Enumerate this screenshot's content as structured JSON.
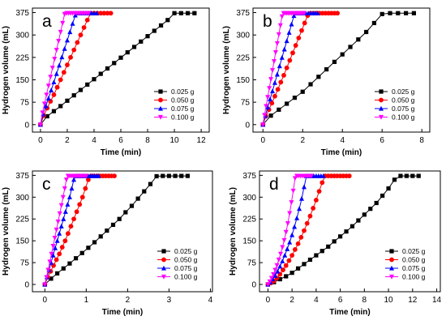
{
  "chart_data": [
    {
      "type": "line",
      "panel_label": "a",
      "xlabel": "Time (min)",
      "ylabel": "Hydrogen volume (mL)",
      "xlim": [
        -0.6,
        12.6
      ],
      "ylim": [
        -25,
        390
      ],
      "xticks": [
        0,
        2,
        4,
        6,
        8,
        10,
        12
      ],
      "yticks": [
        0,
        75,
        150,
        225,
        300,
        375
      ],
      "legend_position": "lower-right",
      "series": [
        {
          "name": "0.025 g",
          "color": "#000000",
          "marker": "square",
          "x": [
            0,
            0.5,
            1,
            1.5,
            2,
            2.5,
            3,
            3.5,
            4,
            4.5,
            5,
            5.5,
            6,
            6.5,
            7,
            7.5,
            8,
            8.5,
            9,
            9.5,
            10,
            10.5,
            11,
            11.5
          ],
          "y": [
            0,
            28,
            45,
            62,
            80,
            98,
            116,
            134,
            152,
            170,
            188,
            206,
            224,
            242,
            260,
            278,
            296,
            314,
            332,
            350,
            373,
            373,
            373,
            373
          ]
        },
        {
          "name": "0.050 g",
          "color": "#ff0000",
          "marker": "circle",
          "x": [
            0,
            0.25,
            0.5,
            0.75,
            1,
            1.25,
            1.5,
            1.75,
            2,
            2.25,
            2.5,
            2.75,
            3,
            3.25,
            3.5,
            3.75,
            4,
            4.25,
            4.5,
            4.75,
            5,
            5.25
          ],
          "y": [
            0,
            30,
            55,
            78,
            100,
            125,
            150,
            175,
            200,
            225,
            250,
            275,
            300,
            325,
            350,
            373,
            373,
            373,
            373,
            373,
            373,
            373
          ]
        },
        {
          "name": "0.075 g",
          "color": "#0000ff",
          "marker": "triangle-up",
          "x": [
            0,
            0.2,
            0.4,
            0.6,
            0.8,
            1,
            1.2,
            1.4,
            1.6,
            1.8,
            2,
            2.2,
            2.4,
            2.6,
            2.8,
            3,
            3.2,
            3.4,
            3.6,
            3.8,
            4,
            4.2
          ],
          "y": [
            0,
            35,
            62,
            88,
            115,
            142,
            170,
            198,
            226,
            254,
            282,
            310,
            338,
            366,
            373,
            373,
            373,
            373,
            373,
            373,
            373,
            373
          ]
        },
        {
          "name": "0.100 g",
          "color": "#ff00ff",
          "marker": "triangle-down",
          "x": [
            0,
            0.15,
            0.3,
            0.45,
            0.6,
            0.75,
            0.9,
            1.05,
            1.2,
            1.35,
            1.5,
            1.65,
            1.8,
            1.95,
            2.1,
            2.25,
            2.4,
            2.55,
            2.7,
            2.85,
            3,
            3.15,
            3.3,
            3.45,
            3.6
          ],
          "y": [
            0,
            40,
            70,
            100,
            130,
            160,
            190,
            220,
            250,
            280,
            310,
            340,
            370,
            373,
            373,
            373,
            373,
            373,
            373,
            373,
            373,
            373,
            373,
            373,
            373
          ]
        }
      ]
    },
    {
      "type": "line",
      "panel_label": "b",
      "xlabel": "Time (min)",
      "ylabel": "Hydrogen volume (mL)",
      "xlim": [
        -0.5,
        8.4
      ],
      "ylim": [
        -25,
        390
      ],
      "xticks": [
        0,
        2,
        4,
        6,
        8
      ],
      "yticks": [
        0,
        75,
        150,
        225,
        300,
        375
      ],
      "legend_position": "lower-right",
      "series": [
        {
          "name": "0.025 g",
          "color": "#000000",
          "marker": "square",
          "x": [
            0,
            0.4,
            0.8,
            1.2,
            1.6,
            2,
            2.4,
            2.8,
            3.2,
            3.6,
            4,
            4.4,
            4.8,
            5.2,
            5.6,
            6,
            6.4,
            6.8,
            7.2,
            7.6
          ],
          "y": [
            0,
            30,
            50,
            70,
            90,
            110,
            135,
            160,
            185,
            210,
            235,
            260,
            285,
            310,
            340,
            370,
            373,
            373,
            373,
            373
          ]
        },
        {
          "name": "0.050 g",
          "color": "#ff0000",
          "marker": "circle",
          "x": [
            0,
            0.15,
            0.3,
            0.45,
            0.6,
            0.75,
            0.9,
            1.05,
            1.2,
            1.35,
            1.5,
            1.65,
            1.8,
            1.95,
            2.1,
            2.25,
            2.4,
            2.55,
            2.7,
            2.85,
            3,
            3.15,
            3.3,
            3.45,
            3.6,
            3.75
          ],
          "y": [
            0,
            28,
            50,
            72,
            95,
            118,
            142,
            165,
            190,
            215,
            240,
            265,
            290,
            315,
            340,
            365,
            373,
            373,
            373,
            373,
            373,
            373,
            373,
            373,
            373,
            373
          ]
        },
        {
          "name": "0.075 g",
          "color": "#0000ff",
          "marker": "triangle-up",
          "x": [
            0,
            0.12,
            0.24,
            0.36,
            0.48,
            0.6,
            0.72,
            0.84,
            0.96,
            1.08,
            1.2,
            1.32,
            1.44,
            1.56,
            1.68,
            1.8,
            1.92,
            2.04,
            2.16,
            2.28,
            2.4,
            2.52,
            2.64,
            2.76
          ],
          "y": [
            0,
            30,
            58,
            85,
            112,
            140,
            168,
            196,
            224,
            252,
            280,
            308,
            336,
            364,
            373,
            373,
            373,
            373,
            373,
            373,
            373,
            373,
            373,
            373
          ]
        },
        {
          "name": "0.100 g",
          "color": "#ff00ff",
          "marker": "triangle-down",
          "x": [
            0,
            0.08,
            0.16,
            0.24,
            0.32,
            0.4,
            0.48,
            0.56,
            0.64,
            0.72,
            0.8,
            0.88,
            0.96,
            1.04,
            1.12,
            1.2,
            1.28,
            1.36,
            1.44,
            1.52,
            1.6,
            1.68,
            1.76,
            1.84,
            1.92,
            2.0,
            2.08
          ],
          "y": [
            0,
            32,
            62,
            92,
            122,
            152,
            182,
            212,
            242,
            272,
            302,
            332,
            362,
            373,
            373,
            373,
            373,
            373,
            373,
            373,
            373,
            373,
            373,
            373,
            373,
            373,
            373
          ]
        }
      ]
    },
    {
      "type": "line",
      "panel_label": "c",
      "xlabel": "Time (min)",
      "ylabel": "Hydrogen volume (mL)",
      "xlim": [
        -0.3,
        4.05
      ],
      "ylim": [
        -25,
        390
      ],
      "xticks": [
        0,
        1,
        2,
        3,
        4
      ],
      "yticks": [
        0,
        75,
        150,
        225,
        300,
        375
      ],
      "legend_position": "lower-right",
      "series": [
        {
          "name": "0.025 g",
          "color": "#000000",
          "marker": "square",
          "x": [
            0,
            0.15,
            0.3,
            0.45,
            0.6,
            0.75,
            0.9,
            1.05,
            1.2,
            1.35,
            1.5,
            1.65,
            1.8,
            1.95,
            2.1,
            2.25,
            2.4,
            2.55,
            2.7,
            2.85,
            3,
            3.15,
            3.3,
            3.45
          ],
          "y": [
            0,
            20,
            38,
            55,
            72,
            90,
            108,
            126,
            145,
            165,
            185,
            205,
            225,
            248,
            270,
            295,
            320,
            345,
            372,
            373,
            373,
            373,
            373,
            373
          ]
        },
        {
          "name": "0.050 g",
          "color": "#ff0000",
          "marker": "circle",
          "x": [
            0,
            0.07,
            0.14,
            0.21,
            0.28,
            0.35,
            0.42,
            0.49,
            0.56,
            0.63,
            0.7,
            0.77,
            0.84,
            0.91,
            0.98,
            1.05,
            1.12,
            1.19,
            1.26,
            1.33,
            1.4,
            1.47,
            1.54,
            1.61,
            1.68
          ],
          "y": [
            0,
            25,
            45,
            65,
            85,
            105,
            128,
            150,
            175,
            200,
            225,
            250,
            275,
            300,
            330,
            360,
            373,
            373,
            373,
            373,
            373,
            373,
            373,
            373,
            373
          ]
        },
        {
          "name": "0.075 g",
          "color": "#0000ff",
          "marker": "triangle-up",
          "x": [
            0,
            0.05,
            0.1,
            0.15,
            0.2,
            0.25,
            0.3,
            0.35,
            0.4,
            0.45,
            0.5,
            0.55,
            0.6,
            0.65,
            0.7,
            0.75,
            0.8,
            0.85,
            0.9,
            0.95,
            1.0,
            1.05,
            1.1,
            1.15,
            1.2,
            1.25,
            1.3
          ],
          "y": [
            0,
            25,
            50,
            75,
            100,
            125,
            150,
            175,
            200,
            225,
            250,
            275,
            300,
            330,
            360,
            373,
            373,
            373,
            373,
            373,
            373,
            373,
            373,
            373,
            373,
            373,
            373
          ]
        },
        {
          "name": "0.100 g",
          "color": "#ff00ff",
          "marker": "triangle-down",
          "x": [
            0,
            0.04,
            0.08,
            0.12,
            0.16,
            0.2,
            0.24,
            0.28,
            0.32,
            0.36,
            0.4,
            0.44,
            0.48,
            0.52,
            0.56,
            0.6,
            0.64,
            0.68,
            0.72,
            0.76,
            0.8,
            0.84,
            0.88,
            0.92,
            0.96,
            1.0
          ],
          "y": [
            0,
            25,
            50,
            78,
            105,
            132,
            160,
            188,
            216,
            244,
            272,
            300,
            330,
            360,
            373,
            373,
            373,
            373,
            373,
            373,
            373,
            373,
            373,
            373,
            373,
            373
          ]
        }
      ]
    },
    {
      "type": "line",
      "panel_label": "d",
      "xlabel": "Time (min)",
      "ylabel": "Hydrogen volume (mL)",
      "xlim": [
        -0.7,
        14.3
      ],
      "ylim": [
        -25,
        390
      ],
      "xticks": [
        0,
        2,
        4,
        6,
        8,
        10,
        12,
        14
      ],
      "yticks": [
        0,
        75,
        150,
        225,
        300,
        375
      ],
      "legend_position": "lower-right",
      "series": [
        {
          "name": "0.025 g",
          "color": "#000000",
          "marker": "square",
          "x": [
            0,
            0.5,
            1,
            1.5,
            2,
            2.5,
            3,
            3.5,
            4,
            4.5,
            5,
            5.5,
            6,
            6.5,
            7,
            7.5,
            8,
            8.5,
            9,
            9.5,
            10,
            10.5,
            11,
            11.5,
            12,
            12.5
          ],
          "y": [
            0,
            8,
            18,
            28,
            40,
            55,
            70,
            85,
            100,
            115,
            130,
            148,
            165,
            182,
            200,
            220,
            240,
            260,
            280,
            305,
            330,
            360,
            373,
            373,
            373,
            373
          ]
        },
        {
          "name": "0.050 g",
          "color": "#ff0000",
          "marker": "circle",
          "x": [
            0,
            0.25,
            0.5,
            0.75,
            1,
            1.25,
            1.5,
            1.75,
            2,
            2.25,
            2.5,
            2.75,
            3,
            3.25,
            3.5,
            3.75,
            4,
            4.25,
            4.5,
            4.75,
            5,
            5.25,
            5.5,
            5.75,
            6,
            6.25,
            6.5,
            6.75
          ],
          "y": [
            0,
            5,
            12,
            22,
            35,
            50,
            65,
            82,
            100,
            120,
            140,
            162,
            185,
            210,
            235,
            262,
            290,
            320,
            350,
            373,
            373,
            373,
            373,
            373,
            373,
            373,
            373,
            373
          ]
        },
        {
          "name": "0.075 g",
          "color": "#0000ff",
          "marker": "triangle-up",
          "x": [
            0,
            0.2,
            0.4,
            0.6,
            0.8,
            1,
            1.2,
            1.4,
            1.6,
            1.8,
            2,
            2.2,
            2.4,
            2.6,
            2.8,
            3,
            3.2,
            3.4,
            3.6,
            3.8,
            4,
            4.2,
            4.4,
            4.6
          ],
          "y": [
            0,
            8,
            18,
            30,
            45,
            62,
            80,
            100,
            122,
            145,
            170,
            198,
            228,
            260,
            295,
            335,
            373,
            373,
            373,
            373,
            373,
            373,
            373,
            373
          ]
        },
        {
          "name": "0.100 g",
          "color": "#ff00ff",
          "marker": "triangle-down",
          "x": [
            0,
            0.15,
            0.3,
            0.45,
            0.6,
            0.75,
            0.9,
            1.05,
            1.2,
            1.35,
            1.5,
            1.65,
            1.8,
            1.95,
            2.1,
            2.25,
            2.4,
            2.55,
            2.7,
            2.85,
            3,
            3.15,
            3.3,
            3.45,
            3.6
          ],
          "y": [
            0,
            10,
            22,
            35,
            50,
            66,
            85,
            105,
            128,
            152,
            180,
            210,
            245,
            282,
            322,
            365,
            373,
            373,
            373,
            373,
            373,
            373,
            373,
            373,
            373
          ]
        }
      ]
    }
  ]
}
